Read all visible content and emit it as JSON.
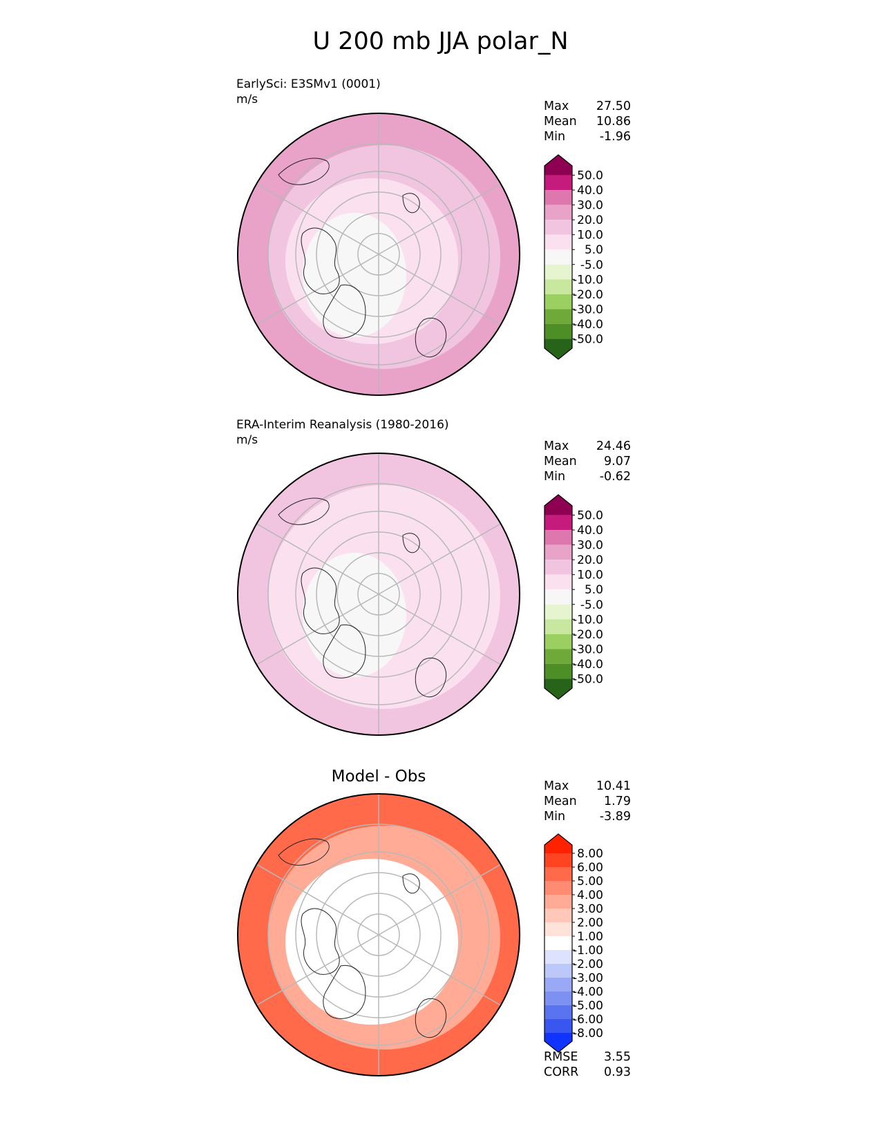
{
  "figure": {
    "title": "U 200 mb JJA polar_N"
  },
  "panels": [
    {
      "label": "EarlySci: E3SMv1 (0001)",
      "units": "m/s",
      "stats": [
        {
          "name": "Max",
          "value": "27.50"
        },
        {
          "name": "Mean",
          "value": "10.86"
        },
        {
          "name": "Min",
          "value": "-1.96"
        }
      ],
      "colorbar": {
        "levels": [
          "50.0",
          "40.0",
          "30.0",
          "20.0",
          "10.0",
          "5.0",
          "-5.0",
          "-10.0",
          "-20.0",
          "-30.0",
          "-40.0",
          "-50.0"
        ],
        "colors": [
          "#8e0152",
          "#c51b7d",
          "#de77ae",
          "#e9a3c9",
          "#f1c4e0",
          "#fbe1ef",
          "#f7f7f7",
          "#e6f5d0",
          "#c7e89e",
          "#9bcf62",
          "#6fa93a",
          "#4d8f26",
          "#276419"
        ]
      },
      "field": {
        "pole": "#f7f7f7",
        "inner": "#fbe1ef",
        "mid": "#f1c4e0",
        "outer": "#e9a3c9"
      }
    },
    {
      "label": "ERA-Interim Reanalysis (1980-2016)",
      "units": "m/s",
      "stats": [
        {
          "name": "Max",
          "value": "24.46"
        },
        {
          "name": "Mean",
          "value": "9.07"
        },
        {
          "name": "Min",
          "value": "-0.62"
        }
      ],
      "colorbar": {
        "levels": [
          "50.0",
          "40.0",
          "30.0",
          "20.0",
          "10.0",
          "5.0",
          "-5.0",
          "-10.0",
          "-20.0",
          "-30.0",
          "-40.0",
          "-50.0"
        ],
        "colors": [
          "#8e0152",
          "#c51b7d",
          "#de77ae",
          "#e9a3c9",
          "#f1c4e0",
          "#fbe1ef",
          "#f7f7f7",
          "#e6f5d0",
          "#c7e89e",
          "#9bcf62",
          "#6fa93a",
          "#4d8f26",
          "#276419"
        ]
      },
      "field": {
        "pole": "#f7f7f7",
        "inner": "#fbe1ef",
        "mid": "#fbe1ef",
        "outer": "#f1c4e0"
      }
    },
    {
      "title": "Model - Obs",
      "stats": [
        {
          "name": "Max",
          "value": "10.41"
        },
        {
          "name": "Mean",
          "value": "1.79"
        },
        {
          "name": "Min",
          "value": "-3.89"
        }
      ],
      "metrics": [
        {
          "name": "RMSE",
          "value": "3.55"
        },
        {
          "name": "CORR",
          "value": "0.93"
        }
      ],
      "colorbar": {
        "levels": [
          "8.00",
          "6.00",
          "5.00",
          "4.00",
          "3.00",
          "2.00",
          "1.00",
          "-1.00",
          "-2.00",
          "-3.00",
          "-4.00",
          "-5.00",
          "-6.00",
          "-8.00"
        ],
        "colors": [
          "#ff2200",
          "#ff4422",
          "#ff6a4a",
          "#ff8c72",
          "#ffab96",
          "#ffc8b9",
          "#ffe2d9",
          "#ffffff",
          "#dde2ff",
          "#bcc7fa",
          "#99a9f5",
          "#7c91f2",
          "#5a73f0",
          "#3a56f0",
          "#1133ff"
        ]
      },
      "field": {
        "pole": "#ffffff",
        "inner": "#ffffff",
        "mid": "#ffab96",
        "outer": "#ff6a4a"
      }
    }
  ]
}
